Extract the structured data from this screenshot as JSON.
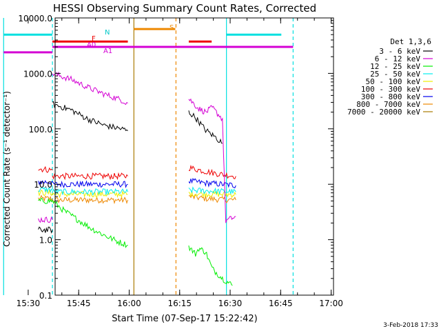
{
  "chart_data": {
    "type": "line",
    "title": "HESSI Observing Summary Count Rates, Corrected",
    "xlabel": "Start Time (07-Sep-17 15:22:42)",
    "ylabel": "Corrected Count Rate (s⁻¹ detector⁻¹)",
    "xlim_minutes": [
      15.3,
      98.0
    ],
    "ylim": [
      0.1,
      10000
    ],
    "y_scale": "log",
    "x_ticks": [
      "15:30",
      "15:45",
      "16:00",
      "16:15",
      "16:30",
      "16:45",
      "17:00"
    ],
    "x_tick_minutes": [
      7.3,
      22.3,
      37.3,
      52.3,
      67.3,
      82.3,
      97.3
    ],
    "y_ticks": [
      "10000.0",
      "1000.0",
      "100.0",
      "10.0",
      "1.0",
      "0.1"
    ],
    "y_tick_values": [
      10000,
      1000,
      100,
      10,
      1,
      0.1
    ],
    "legend_title": "Det 1,3,6",
    "legend_position": "right",
    "timestamp": "3-Feb-2018 17:33",
    "series": [
      {
        "name": "3 - 6 keV",
        "color": "#000000",
        "segments": [
          [
            [
              10.3,
              1.5
            ],
            [
              14.5,
              1.5
            ]
          ],
          [
            [
              14.5,
              280
            ],
            [
              20,
              220
            ],
            [
              25,
              150
            ],
            [
              30,
              115
            ],
            [
              35,
              100
            ],
            [
              36.9,
              92
            ]
          ],
          [
            [
              55,
              200
            ],
            [
              57,
              160
            ],
            [
              60,
              95
            ],
            [
              63,
              70
            ],
            [
              65,
              55
            ]
          ]
        ]
      },
      {
        "name": "6 - 12 keV",
        "color": "#d400d4",
        "segments": [
          [
            [
              10.3,
              2.3
            ],
            [
              14.5,
              2.3
            ]
          ],
          [
            [
              14.5,
              1000
            ],
            [
              20,
              780
            ],
            [
              25,
              560
            ],
            [
              30,
              420
            ],
            [
              35,
              330
            ],
            [
              36.9,
              290
            ]
          ],
          [
            [
              55,
              350
            ],
            [
              58,
              230
            ],
            [
              60,
              200
            ],
            [
              62,
              240
            ],
            [
              65,
              150
            ],
            [
              66,
              2.2
            ],
            [
              69,
              2.6
            ]
          ]
        ]
      },
      {
        "name": "12 - 25 keV",
        "color": "#00ee00",
        "segments": [
          [
            [
              10.3,
              5.0
            ],
            [
              14.5,
              5.0
            ]
          ],
          [
            [
              14.5,
              5.0
            ],
            [
              18,
              3.3
            ],
            [
              22,
              2.3
            ],
            [
              26,
              1.6
            ],
            [
              30,
              1.2
            ],
            [
              34,
              0.92
            ],
            [
              36.9,
              0.8
            ]
          ],
          [
            [
              55,
              0.75
            ],
            [
              57,
              0.55
            ],
            [
              58,
              0.7
            ],
            [
              60,
              0.6
            ],
            [
              62,
              0.3
            ],
            [
              65,
              0.2
            ],
            [
              68,
              0.15
            ]
          ]
        ]
      },
      {
        "name": "25 - 50 keV",
        "color": "#00eeee",
        "segments": [
          [
            [
              10.3,
              8.0
            ],
            [
              14.5,
              8.0
            ]
          ],
          [
            [
              14.5,
              7.3
            ],
            [
              36.9,
              7.3
            ]
          ],
          [
            [
              55,
              7.8
            ],
            [
              69,
              7.3
            ]
          ]
        ]
      },
      {
        "name": "50 - 100 keV",
        "color": "#eeee00",
        "segments": [
          [
            [
              10.3,
              7.0
            ],
            [
              14.5,
              7.0
            ]
          ],
          [
            [
              14.5,
              6.6
            ],
            [
              36.9,
              6.6
            ]
          ],
          [
            [
              55,
              6.8
            ],
            [
              69,
              6.5
            ]
          ]
        ]
      },
      {
        "name": "100 - 300 keV",
        "color": "#ee0000",
        "segments": [
          [
            [
              10.3,
              19
            ],
            [
              14.5,
              18
            ]
          ],
          [
            [
              14.5,
              14
            ],
            [
              36.9,
              14
            ]
          ],
          [
            [
              55,
              20
            ],
            [
              60,
              17
            ],
            [
              65,
              15
            ],
            [
              69,
              14
            ]
          ]
        ]
      },
      {
        "name": "300 - 800 keV",
        "color": "#0000ee",
        "segments": [
          [
            [
              10.3,
              11
            ],
            [
              14.5,
              11
            ]
          ],
          [
            [
              14.5,
              10
            ],
            [
              36.9,
              10
            ]
          ],
          [
            [
              55,
              11.5
            ],
            [
              60,
              10.5
            ],
            [
              65,
              10
            ],
            [
              69,
              9.5
            ]
          ]
        ]
      },
      {
        "name": "800 - 7000 keV",
        "color": "#ee8800",
        "segments": [
          [
            [
              10.3,
              5.5
            ],
            [
              14.5,
              5.5
            ]
          ],
          [
            [
              14.5,
              5.2
            ],
            [
              36.9,
              5.2
            ]
          ],
          [
            [
              55,
              6.0
            ],
            [
              60,
              5.5
            ],
            [
              65,
              5.3
            ],
            [
              69,
              5.2
            ]
          ]
        ]
      },
      {
        "name": "7000 - 20000 keV",
        "color": "#aa7a00",
        "segments": []
      }
    ],
    "flag_bars": [
      {
        "label": "N",
        "color": "#00e0e0",
        "value": 5000,
        "segments": [
          [
            0,
            14.5
          ],
          [
            66.2,
            82.5
          ]
        ]
      },
      {
        "label": "S",
        "color": "#ee8800",
        "value": 6300,
        "segments": [
          [
            38.7,
            51.0
          ]
        ]
      },
      {
        "label": "F",
        "color": "#ee0000",
        "value": 3750,
        "segments": [
          [
            14.5,
            36.9
          ],
          [
            55,
            61.8
          ]
        ]
      },
      {
        "label": "A0",
        "color": "#d400d4",
        "value": 3000,
        "segments": [
          [
            14.5,
            86
          ]
        ]
      },
      {
        "label": "A1",
        "color": "#d400d4",
        "value": 2400,
        "segments": [
          [
            0,
            14.5
          ]
        ]
      }
    ],
    "vertical_markers": [
      {
        "x": 0.0,
        "color": "#00e0e0",
        "style": "solid"
      },
      {
        "x": 14.5,
        "color": "#00e0e0",
        "style": "dashed"
      },
      {
        "x": 38.7,
        "color": "#aa7a00",
        "style": "solid"
      },
      {
        "x": 51.2,
        "color": "#ee8800",
        "style": "dashed"
      },
      {
        "x": 66.2,
        "color": "#00e0e0",
        "style": "solid"
      },
      {
        "x": 86.0,
        "color": "#00e0e0",
        "style": "dashed"
      }
    ]
  }
}
